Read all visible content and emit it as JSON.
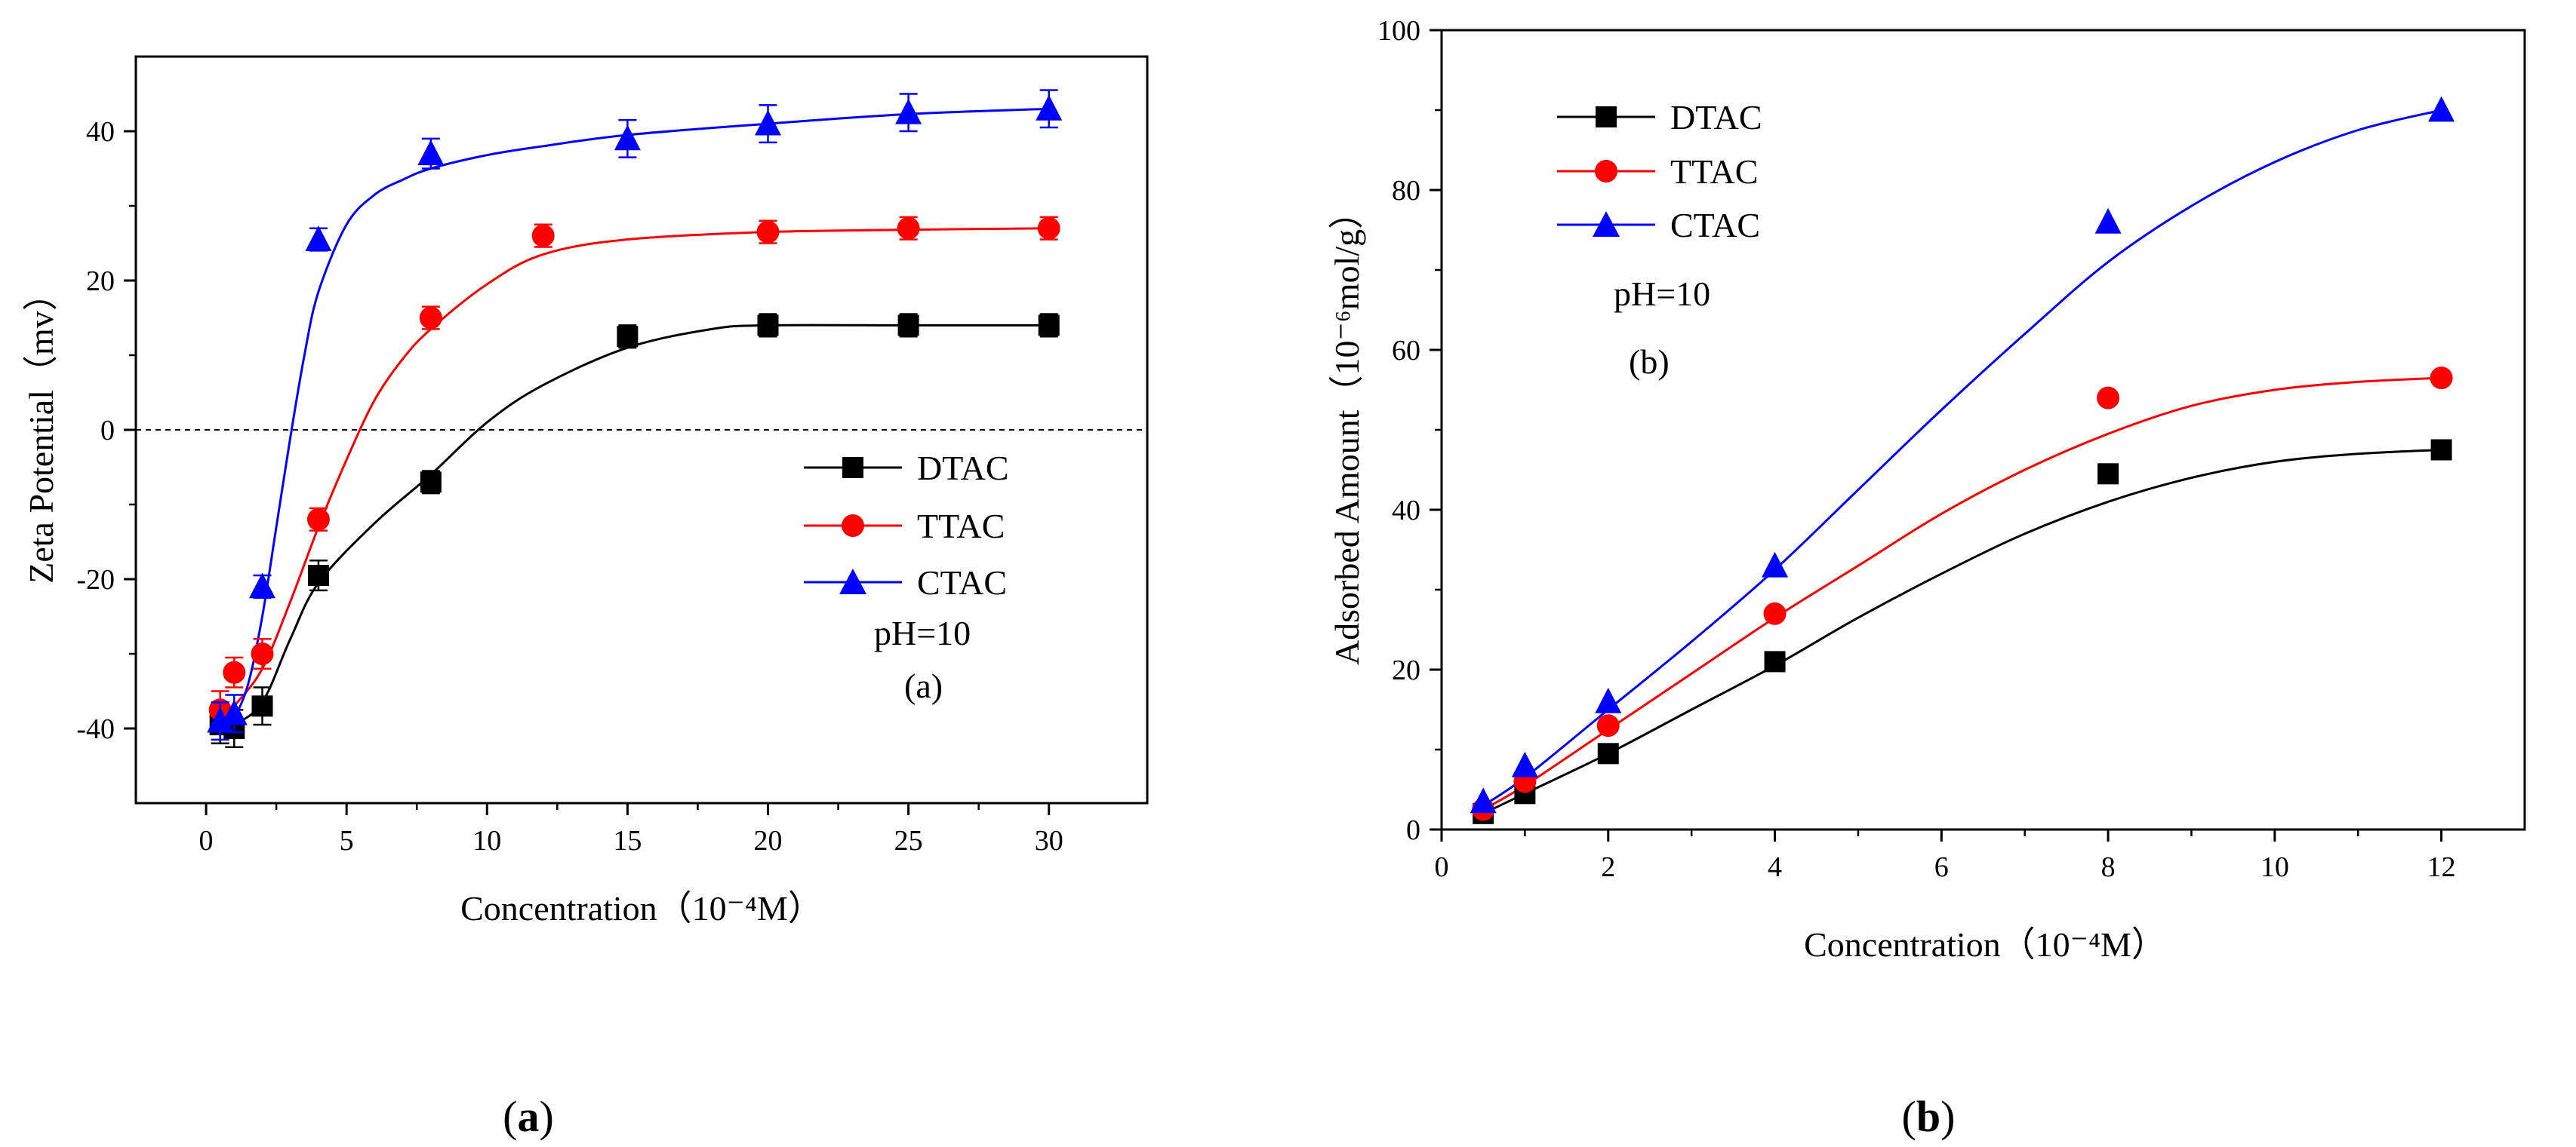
{
  "chart_data": [
    {
      "type": "scatter",
      "xlabel": "Concentration（10⁻⁴M）",
      "ylabel": "Zeta Potential（mv）",
      "xlim": [
        -2.5,
        33.5
      ],
      "ylim": [
        -50,
        50
      ],
      "xticks": [
        0,
        5,
        10,
        15,
        20,
        25,
        30
      ],
      "yticks": [
        -40,
        -20,
        0,
        20,
        40
      ],
      "reference_line": {
        "y": 0,
        "style": "dashed"
      },
      "legend": [
        "DTAC",
        "TTAC",
        "CTAC"
      ],
      "annotations": [
        "pH=10",
        "(a)"
      ],
      "caption": "(a)",
      "series": [
        {
          "name": "DTAC",
          "color": "#000000",
          "marker": "square",
          "x": [
            0.5,
            1,
            2,
            4,
            8,
            15,
            20,
            25,
            30
          ],
          "y": [
            -39.5,
            -40,
            -37,
            -19.5,
            -7,
            12.5,
            14,
            14,
            14
          ],
          "error": [
            2.5,
            2.5,
            2.5,
            2,
            1.5,
            1.5,
            1.5,
            1.5,
            1.5
          ],
          "fit_x": [
            0.5,
            1,
            2,
            3,
            4,
            6,
            8,
            10,
            12,
            15,
            18,
            20,
            25,
            30
          ],
          "fit_y": [
            -40,
            -39.5,
            -36.5,
            -28,
            -20.5,
            -12.5,
            -6,
            1,
            6,
            11,
            13.5,
            14,
            14,
            14
          ]
        },
        {
          "name": "TTAC",
          "color": "#ff0000",
          "marker": "circle",
          "x": [
            0.5,
            1,
            2,
            4,
            8,
            12,
            20,
            25,
            30
          ],
          "y": [
            -37.5,
            -32.5,
            -30,
            -12,
            15,
            26,
            26.5,
            27,
            27
          ],
          "error": [
            2.5,
            2,
            2,
            1.5,
            1.5,
            1.5,
            1.5,
            1.5,
            1.5
          ],
          "fit_x": [
            0.5,
            1,
            2,
            3,
            4,
            5,
            6,
            7,
            8,
            10,
            12,
            15,
            20,
            25,
            30
          ],
          "fit_y": [
            -39,
            -37,
            -32,
            -23,
            -13,
            -4,
            4,
            9.5,
            13.5,
            19.5,
            23.5,
            25.5,
            26.5,
            26.8,
            27
          ]
        },
        {
          "name": "CTAC",
          "color": "#0000ff",
          "marker": "triangle",
          "x": [
            0.5,
            1,
            2,
            4,
            8,
            15,
            20,
            25,
            30
          ],
          "y": [
            -39,
            -38,
            -21,
            25.5,
            37,
            39,
            41,
            42.5,
            43
          ],
          "error": [
            2.5,
            2.5,
            1.5,
            1.5,
            2,
            2.5,
            2.5,
            2.5,
            2.5
          ],
          "fit_x": [
            0.5,
            1,
            1.5,
            2,
            2.5,
            3,
            3.5,
            4,
            5,
            6,
            7,
            8,
            10,
            12,
            15,
            20,
            25,
            30
          ],
          "fit_y": [
            -40,
            -38.5,
            -34,
            -25,
            -13,
            -1,
            10,
            18.5,
            27.5,
            31.5,
            33.5,
            35,
            36.8,
            38,
            39.5,
            41,
            42.3,
            43
          ]
        }
      ]
    },
    {
      "type": "scatter",
      "xlabel": "Concentration（10⁻⁴M）",
      "ylabel": "Adsorbed Amount（10⁻⁶mol/g）",
      "xlim": [
        0,
        13
      ],
      "ylim": [
        0,
        100
      ],
      "xticks": [
        0,
        2,
        4,
        6,
        8,
        10,
        12
      ],
      "yticks": [
        0,
        20,
        40,
        60,
        80,
        100
      ],
      "legend": [
        "DTAC",
        "TTAC",
        "CTAC"
      ],
      "annotations": [
        "pH=10",
        "(b)"
      ],
      "caption": "(b)",
      "series": [
        {
          "name": "DTAC",
          "color": "#000000",
          "marker": "square",
          "x": [
            0.5,
            1,
            2,
            4,
            8,
            12
          ],
          "y": [
            2,
            4.5,
            9.5,
            21,
            44.5,
            47.5
          ],
          "fit_x": [
            0.5,
            1,
            2,
            3,
            4,
            5,
            6,
            7,
            8,
            9,
            10,
            11,
            12
          ],
          "fit_y": [
            2,
            4.5,
            9.5,
            15,
            20.5,
            26.5,
            32,
            37,
            41,
            44,
            46,
            47,
            47.5
          ]
        },
        {
          "name": "TTAC",
          "color": "#ff0000",
          "marker": "circle",
          "x": [
            0.5,
            1,
            2,
            4,
            8,
            12
          ],
          "y": [
            2.5,
            6,
            13,
            27,
            54,
            56.5
          ],
          "fit_x": [
            0.5,
            1,
            2,
            3,
            4,
            5,
            6,
            7,
            8,
            9,
            10,
            11,
            12
          ],
          "fit_y": [
            2.5,
            5.5,
            12.5,
            19.5,
            26.5,
            33,
            39.5,
            45,
            49.5,
            53,
            55,
            56,
            56.5
          ]
        },
        {
          "name": "CTAC",
          "color": "#0000ff",
          "marker": "triangle",
          "x": [
            0.5,
            1,
            2,
            4,
            8,
            12
          ],
          "y": [
            3.5,
            8,
            16,
            33,
            76,
            90
          ],
          "fit_x": [
            0.5,
            1,
            2,
            3,
            4,
            5,
            6,
            7,
            8,
            9,
            10,
            11,
            12
          ],
          "fit_y": [
            3,
            6.5,
            15,
            23.5,
            32.5,
            42.5,
            52.5,
            62,
            71,
            78,
            83.5,
            87.5,
            90
          ]
        }
      ]
    }
  ]
}
